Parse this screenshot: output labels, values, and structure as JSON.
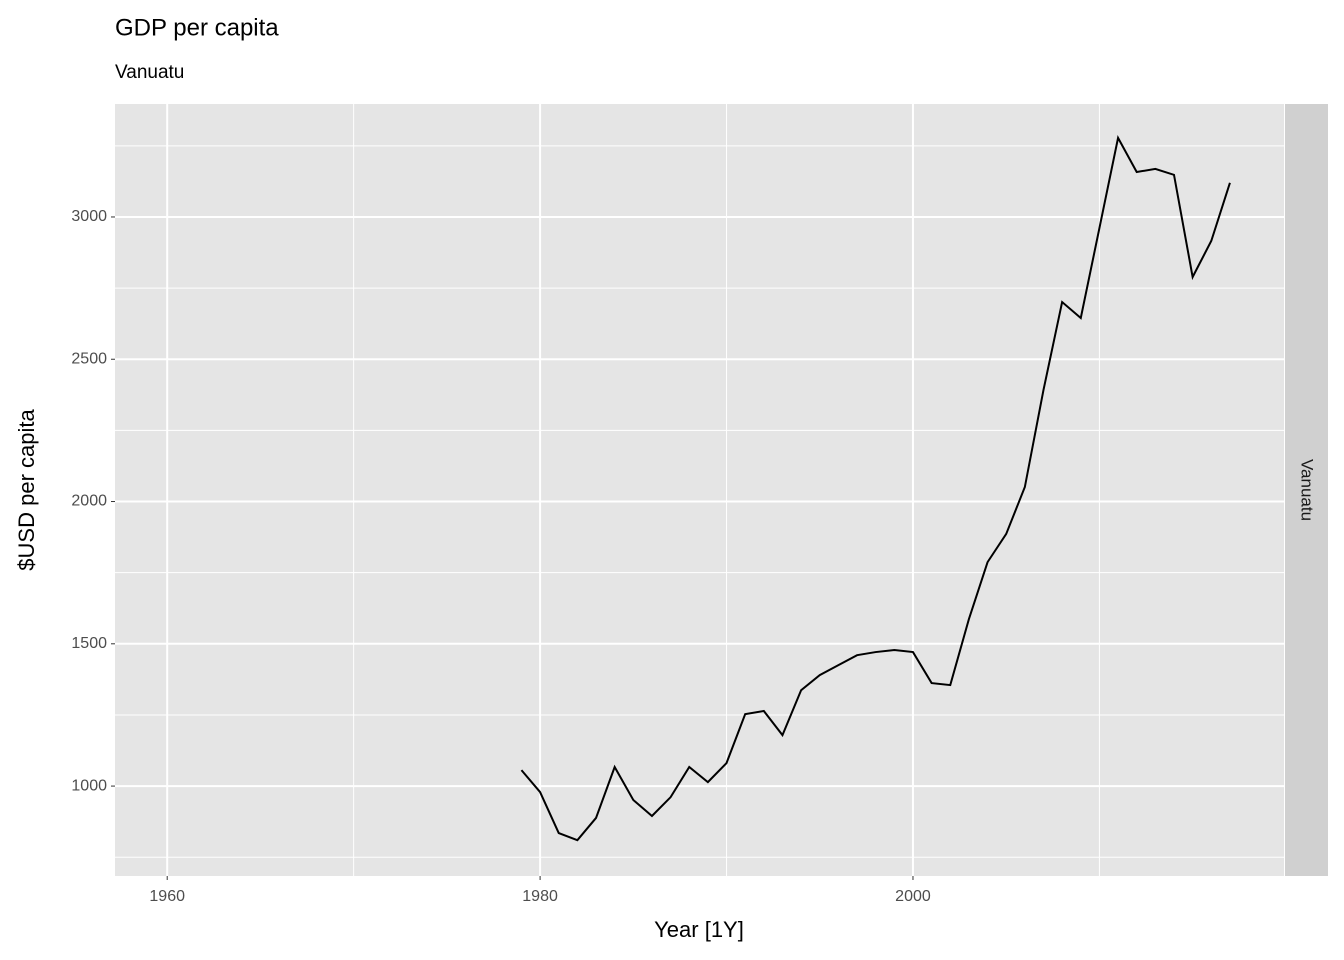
{
  "chart_data": {
    "type": "line",
    "title": "GDP per capita",
    "subtitle": "Vanuatu",
    "x_label": "Year [1Y]",
    "y_label": "$USD per capita",
    "facet": "Vanuatu",
    "x": [
      1979,
      1980,
      1981,
      1982,
      1983,
      1984,
      1985,
      1986,
      1987,
      1988,
      1989,
      1990,
      1991,
      1992,
      1993,
      1994,
      1995,
      1996,
      1997,
      1998,
      1999,
      2000,
      2001,
      2002,
      2003,
      2004,
      2005,
      2006,
      2007,
      2008,
      2009,
      2010,
      2011,
      2012,
      2013,
      2014,
      2015,
      2016,
      2017
    ],
    "series": [
      {
        "name": "Vanuatu",
        "color": "#000000",
        "values": [
          1056,
          979,
          835,
          810,
          888,
          1067,
          951,
          895,
          961,
          1067,
          1014,
          1081,
          1253,
          1264,
          1179,
          1337,
          1390,
          1425,
          1460,
          1471,
          1478,
          1471,
          1362,
          1355,
          1587,
          1787,
          1886,
          2051,
          2392,
          2701,
          2645,
          2961,
          3278,
          3158,
          3169,
          3148,
          2789,
          2916,
          3120
        ]
      }
    ],
    "xlim": [
      1957.2,
      2019.9
    ],
    "xticks": [
      1960,
      1980,
      2000
    ],
    "xminor": [
      1970,
      1990,
      2010
    ],
    "ylim": [
      684,
      3397
    ],
    "yticks": [
      1000,
      1500,
      2000,
      2500,
      3000
    ],
    "yminor": [
      750,
      1250,
      1750,
      2250,
      2750,
      3250
    ],
    "grid": true
  }
}
